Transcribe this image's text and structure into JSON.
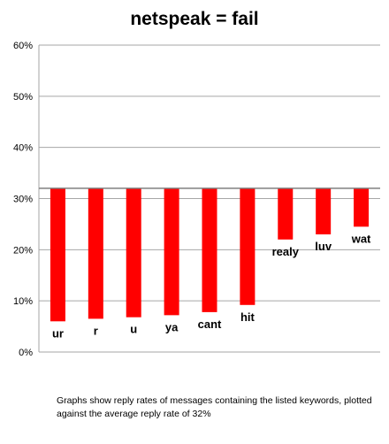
{
  "chart_data": {
    "type": "bar",
    "title": "netspeak = fail",
    "caption": "Graphs show reply rates of messages containing the listed keywords, plotted against the average reply rate of 32%",
    "baseline": 32,
    "unit": "%",
    "ylim": [
      0,
      60
    ],
    "yticks": [
      0,
      10,
      20,
      30,
      40,
      50,
      60
    ],
    "ytick_labels": [
      "0%",
      "10%",
      "20%",
      "30%",
      "40%",
      "50%",
      "60%"
    ],
    "grid": true,
    "categories": [
      "ur",
      "r",
      "u",
      "ya",
      "cant",
      "hit",
      "realy",
      "luv",
      "wat"
    ],
    "values": [
      6,
      6.5,
      6.8,
      7.2,
      7.8,
      9.2,
      22,
      23,
      24.5
    ],
    "bar_color": "#ff0000"
  }
}
